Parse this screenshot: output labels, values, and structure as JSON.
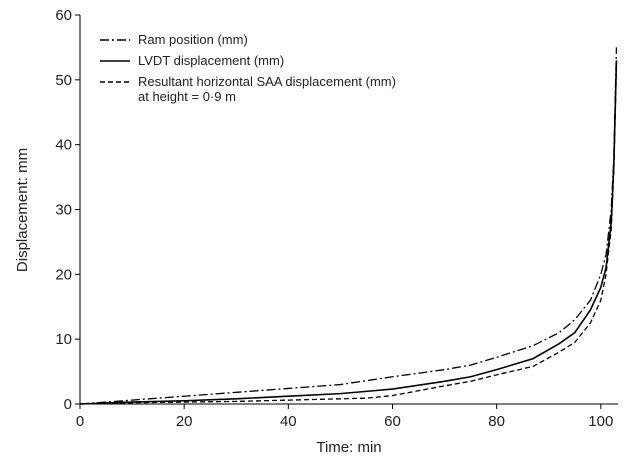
{
  "chart_data": {
    "type": "line",
    "x_label": "Time: min",
    "y_label": "Displacement: mm",
    "xlim": [
      0,
      103.3
    ],
    "ylim": [
      0,
      60
    ],
    "xticks": [
      0,
      20,
      40,
      60,
      80,
      100
    ],
    "yticks": [
      0,
      10,
      20,
      30,
      40,
      50,
      60
    ],
    "grid": false,
    "legend": "upper left",
    "series": [
      {
        "name": "Ram position (mm)",
        "color": "#000000",
        "style": "dashdot",
        "x": [
          0,
          10,
          20,
          30,
          40,
          50,
          60,
          70,
          75,
          80,
          87,
          92,
          95,
          98,
          100,
          101,
          102,
          102.5,
          103
        ],
        "values": [
          0,
          0.6,
          1.2,
          1.8,
          2.4,
          3,
          4.2,
          5.3,
          6,
          7.2,
          9,
          11,
          13,
          16,
          20,
          23,
          30,
          38,
          55
        ]
      },
      {
        "name": "LVDT displacement (mm)",
        "color": "#000000",
        "style": "solid",
        "x": [
          0,
          10,
          20,
          30,
          40,
          50,
          60,
          70,
          75,
          80,
          87,
          92,
          95,
          98,
          100,
          101,
          102,
          102.5,
          103
        ],
        "values": [
          0,
          0.3,
          0.5,
          0.8,
          1.2,
          1.6,
          2.3,
          3.5,
          4.2,
          5.3,
          7,
          9.3,
          11,
          14.5,
          18,
          21,
          28,
          37,
          53
        ]
      },
      {
        "name": "Resultant horizontal SAA displacement (mm)\nat height = 0·9 m",
        "color": "#000000",
        "style": "dashed",
        "x": [
          0,
          10,
          20,
          30,
          40,
          50,
          55,
          60,
          70,
          75,
          80,
          87,
          92,
          95,
          98,
          100,
          101,
          102,
          102.5,
          103
        ],
        "values": [
          0,
          0.2,
          0.3,
          0.4,
          0.6,
          0.8,
          0.9,
          1.3,
          2.8,
          3.5,
          4.5,
          5.8,
          8,
          9.5,
          12.5,
          16,
          20,
          27,
          36,
          52
        ]
      }
    ]
  }
}
